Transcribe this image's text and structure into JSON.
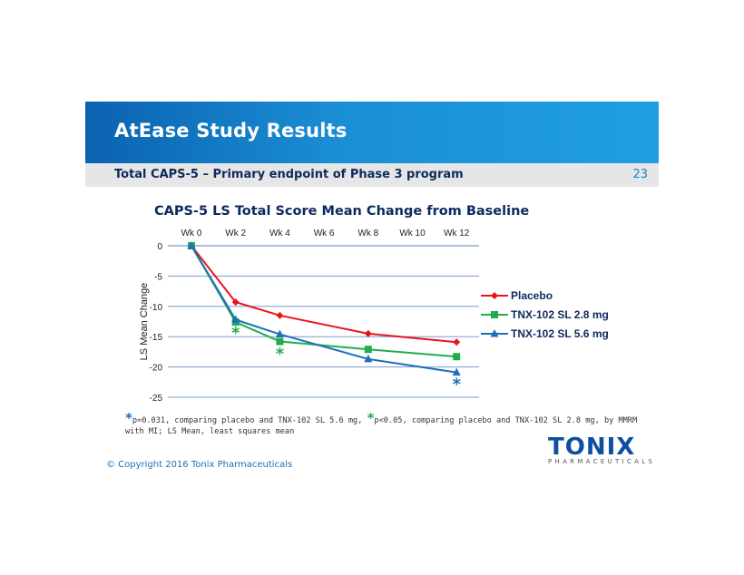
{
  "header": {
    "title": "AtEase Study Results",
    "subtitle": "Total CAPS-5 – Primary endpoint of Phase 3 program",
    "page_number": "23"
  },
  "chart_data": {
    "type": "line",
    "title": "CAPS-5 LS Total Score Mean Change from Baseline",
    "xlabel": "",
    "ylabel": "LS Mean Change",
    "categories": [
      "Wk 0",
      "Wk 2",
      "Wk 4",
      "Wk 6",
      "Wk 8",
      "Wk 10",
      "Wk 12"
    ],
    "yticks": [
      "0",
      "-5",
      "-10",
      "-15",
      "-20",
      "-25"
    ],
    "ylim": [
      -25,
      0
    ],
    "grid": true,
    "legend_position": "right",
    "series": [
      {
        "name": "Placebo",
        "color": "#e8141b",
        "marker": "diamond",
        "x": [
          "Wk 0",
          "Wk 2",
          "Wk 4",
          "Wk 8",
          "Wk 12"
        ],
        "values": [
          0,
          -9.3,
          -11.5,
          -14.5,
          -15.9
        ]
      },
      {
        "name": "TNX-102 SL 2.8 mg",
        "color": "#1fae4b",
        "marker": "square",
        "x": [
          "Wk 0",
          "Wk 2",
          "Wk 4",
          "Wk 8",
          "Wk 12"
        ],
        "values": [
          0,
          -12.6,
          -15.8,
          -17.1,
          -18.3
        ]
      },
      {
        "name": "TNX-102 SL 5.6 mg",
        "color": "#1f6fba",
        "marker": "triangle",
        "x": [
          "Wk 0",
          "Wk 2",
          "Wk 4",
          "Wk 8",
          "Wk 12"
        ],
        "values": [
          0,
          -12.2,
          -14.6,
          -18.7,
          -20.9
        ]
      }
    ],
    "significance_markers": [
      {
        "symbol": "*",
        "color": "#1fae4b",
        "x": "Wk 2",
        "y": -15.3
      },
      {
        "symbol": "*",
        "color": "#1fae4b",
        "x": "Wk 4",
        "y": -18.7
      },
      {
        "symbol": "*",
        "color": "#1f6fba",
        "x": "Wk 12",
        "y": -23.7
      }
    ]
  },
  "footnote": {
    "star1": "*",
    "text1": "p=0.031, comparing placebo and TNX-102 SL 5.6 mg, ",
    "star2": "*",
    "text2": "p<0.05, comparing placebo and TNX-102 SL 2.8 mg, by MMRM with MI; LS Mean, least squares mean",
    "star1_color": "#1f6fba",
    "star2_color": "#1fae4b"
  },
  "copyright": "© Copyright 2016 Tonix Pharmaceuticals",
  "logo": {
    "name": "TONIX",
    "sub": "PHARMACEUTICALS"
  }
}
